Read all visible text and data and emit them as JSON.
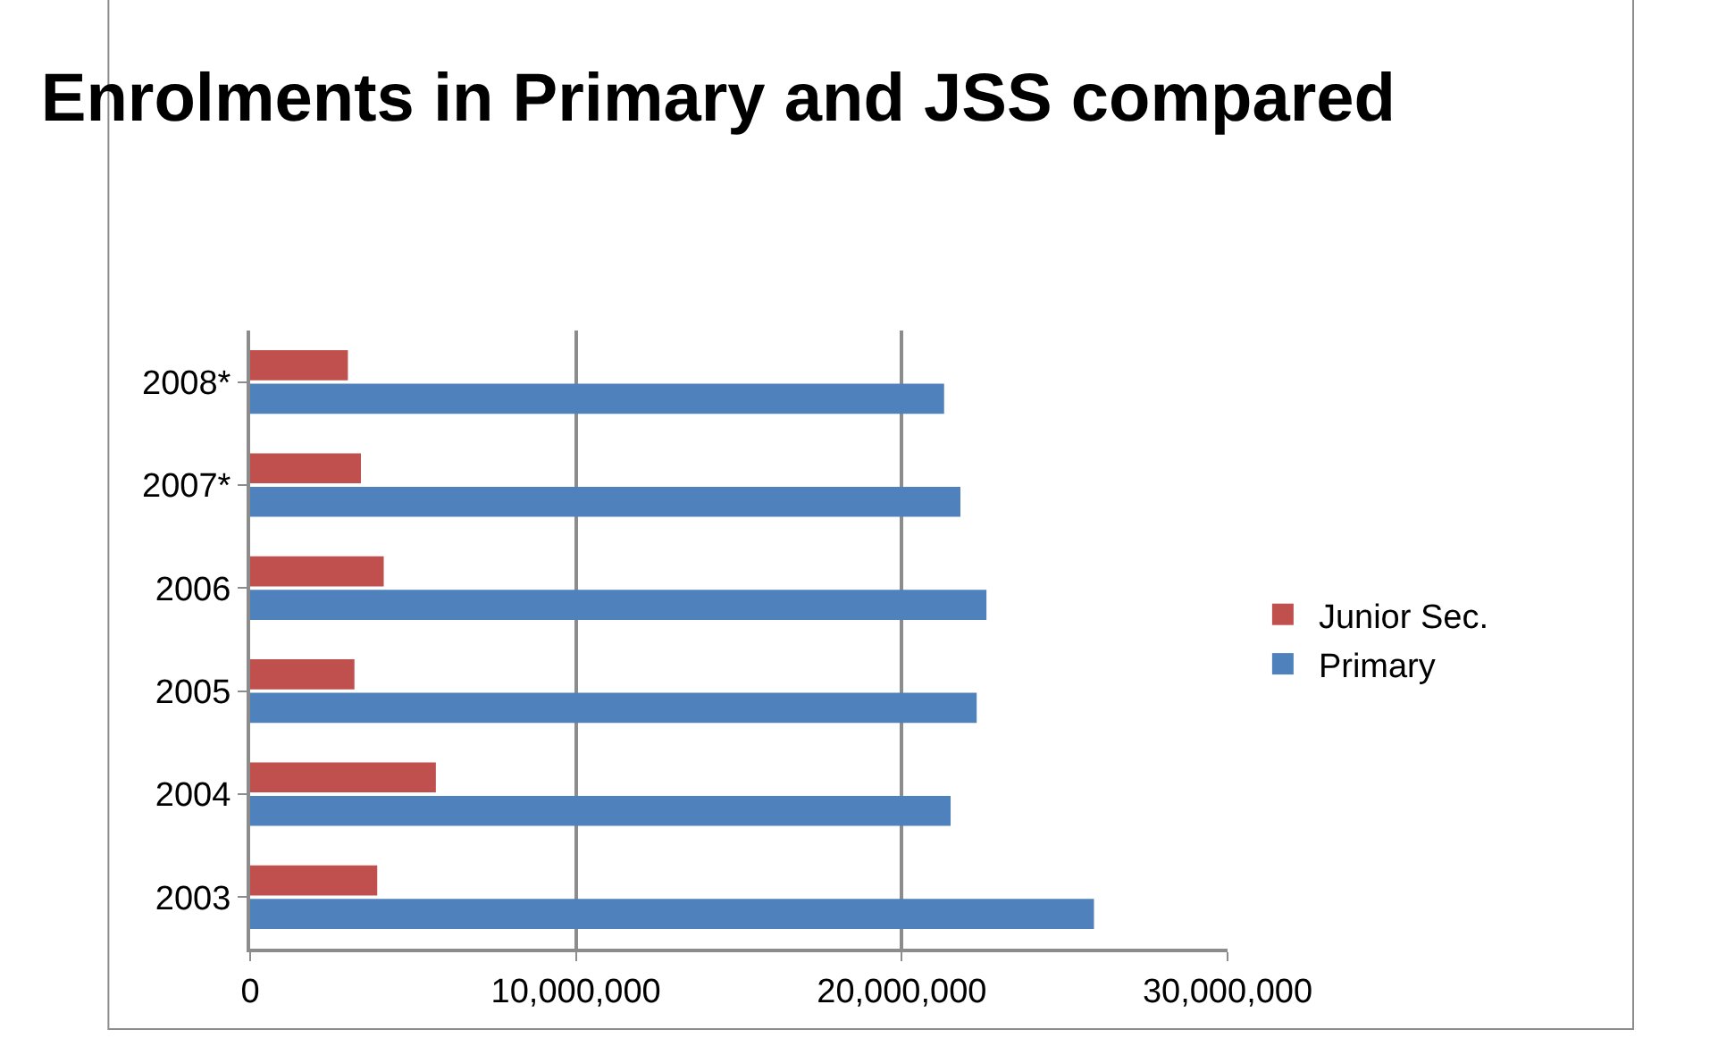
{
  "chart_data": {
    "type": "bar",
    "orientation": "horizontal",
    "title": "Enrolments in Primary and JSS compared",
    "categories": [
      "2008*",
      "2007*",
      "2006",
      "2005",
      "2004",
      "2003"
    ],
    "series": [
      {
        "name": "Junior Sec.",
        "color": "#c0504d",
        "values": [
          3000000,
          3400000,
          4100000,
          3200000,
          5700000,
          3900000
        ]
      },
      {
        "name": "Primary",
        "color": "#4f81bd",
        "values": [
          21300000,
          21800000,
          22600000,
          22300000,
          21500000,
          25900000
        ]
      }
    ],
    "xlim": [
      0,
      30000000
    ],
    "xticks": [
      {
        "value": 0,
        "label": "0"
      },
      {
        "value": 10000000,
        "label": "10,000,000"
      },
      {
        "value": 20000000,
        "label": "20,000,000"
      },
      {
        "value": 30000000,
        "label": "30,000,000"
      }
    ],
    "grid": "x",
    "legend": "right"
  }
}
